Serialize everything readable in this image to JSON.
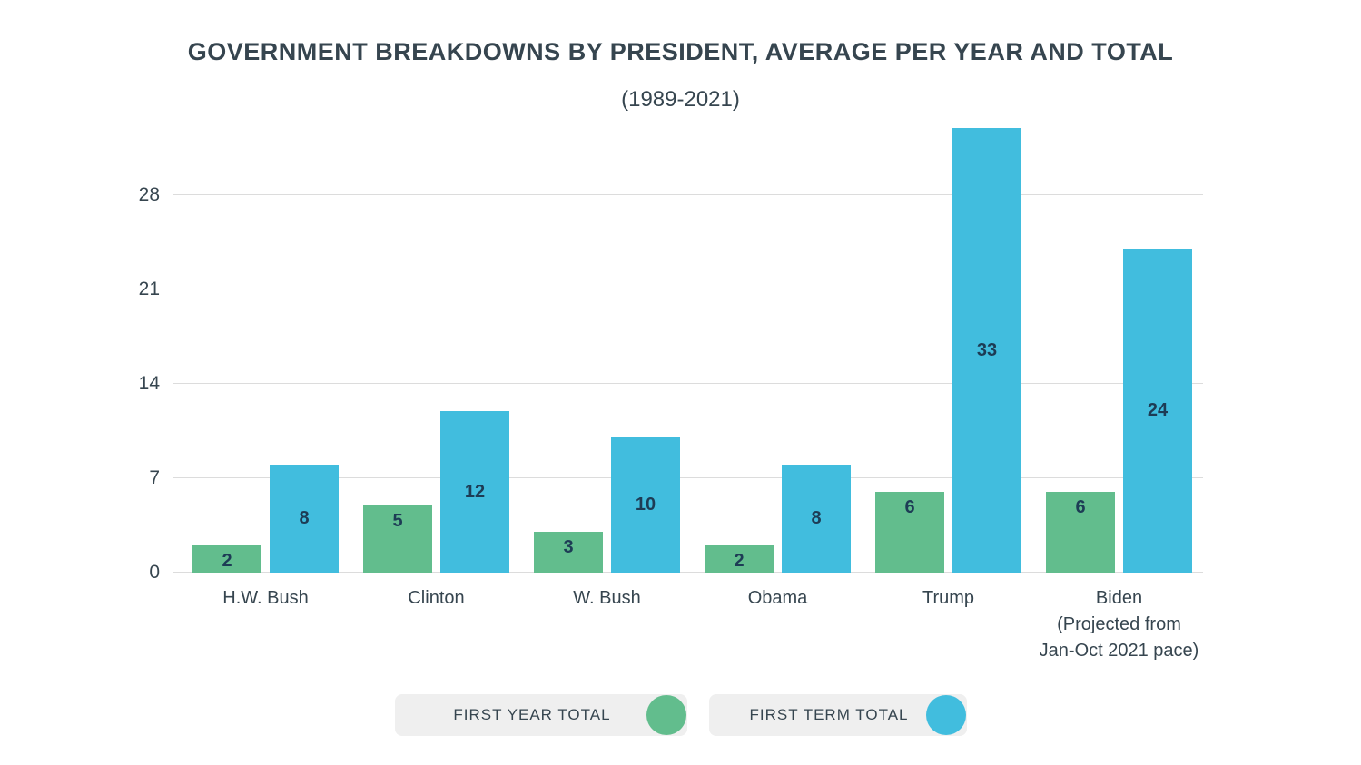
{
  "title": "GOVERNMENT BREAKDOWNS BY PRESIDENT, AVERAGE PER YEAR AND TOTAL",
  "subtitle": "(1989-2021)",
  "colors": {
    "first_year": "#62bd8d",
    "first_term": "#41bdde",
    "title_text": "#36454f",
    "value_label": "#1d3c55",
    "gridline": "#dcdcdc",
    "legend_background": "#efefef"
  },
  "legend": {
    "items": [
      {
        "label": "FIRST YEAR TOTAL",
        "color": "#62bd8d"
      },
      {
        "label": "FIRST TERM TOTAL",
        "color": "#41bdde"
      }
    ]
  },
  "chart_data": {
    "type": "bar",
    "categories": [
      "H.W. Bush",
      "Clinton",
      "W. Bush",
      "Obama",
      "Trump",
      "Biden\n(Projected from\nJan-Oct 2021 pace)"
    ],
    "series": [
      {
        "name": "FIRST YEAR TOTAL",
        "color": "#62bd8d",
        "values": [
          2,
          5,
          3,
          2,
          6,
          6
        ]
      },
      {
        "name": "FIRST TERM TOTAL",
        "color": "#41bdde",
        "values": [
          8,
          12,
          10,
          8,
          33,
          24
        ]
      }
    ],
    "title": "GOVERNMENT BREAKDOWNS BY PRESIDENT, AVERAGE PER YEAR AND TOTAL",
    "subtitle": "(1989-2021)",
    "xlabel": "",
    "ylabel": "",
    "yticks": [
      0,
      7,
      14,
      21,
      28
    ],
    "ylim": [
      0,
      33
    ],
    "grid": true,
    "legend_position": "bottom"
  }
}
